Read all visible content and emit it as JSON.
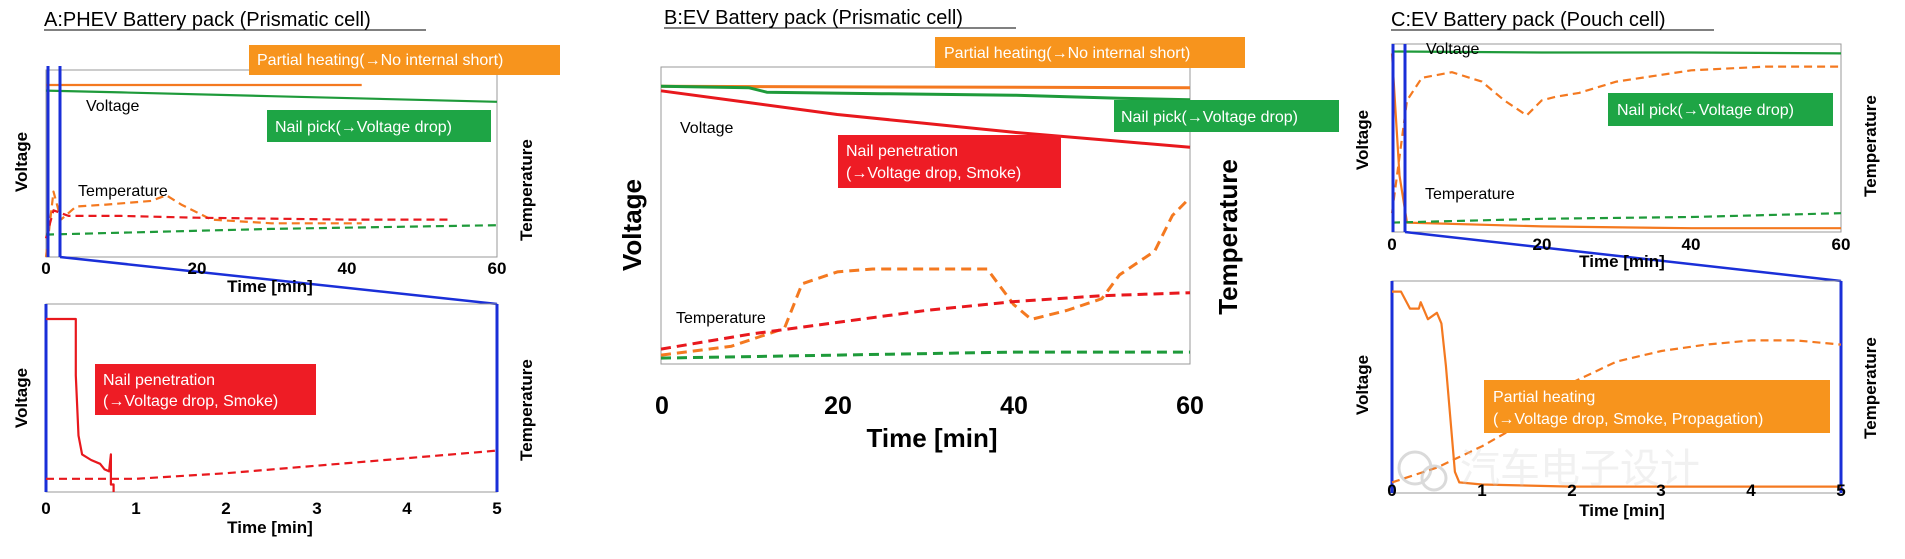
{
  "colors": {
    "orange": "#f47920",
    "red": "#e8181d",
    "green": "#1e9a3a",
    "box_orange": "#f7941d",
    "box_green": "#1ea545",
    "box_red": "#ee1c25",
    "zoom_blue": "#1a2fd8"
  },
  "watermark": "汽车电子设计",
  "chart_data": [
    {
      "id": "A-top",
      "type": "line",
      "title": "A:PHEV Battery pack (Prismatic cell)",
      "xlabel": "Time [min]",
      "ylabel": "Voltage",
      "y2label": "Temperature",
      "xlim": [
        0,
        60
      ],
      "xticks": [
        "0",
        "20",
        "40",
        "60"
      ],
      "annotations": {
        "voltage_label": "Voltage",
        "temperature_label": "Temperature",
        "partial_heating": "Partial heating(→No internal short)",
        "nail_pick": "Nail pick(→Voltage drop)"
      },
      "series": [
        {
          "name": "Partial heating voltage",
          "color": "orange",
          "style": "solid",
          "axis": "left",
          "x": [
            0,
            42
          ],
          "values": [
            0.92,
            0.92
          ]
        },
        {
          "name": "Nail pick voltage",
          "color": "green",
          "style": "solid",
          "axis": "left",
          "x": [
            0,
            10,
            30,
            60
          ],
          "values": [
            0.89,
            0.88,
            0.86,
            0.83
          ]
        },
        {
          "name": "Partial heating temperature",
          "color": "orange",
          "style": "dashed",
          "axis": "right",
          "x": [
            0,
            1,
            2,
            4,
            8,
            14,
            16,
            18,
            22,
            30,
            42
          ],
          "values": [
            0.0,
            0.35,
            0.2,
            0.27,
            0.28,
            0.3,
            0.33,
            0.28,
            0.2,
            0.18,
            0.18
          ]
        },
        {
          "name": "Nail penetration temperature",
          "color": "red",
          "style": "dashed",
          "axis": "right",
          "x": [
            0,
            1,
            3,
            10,
            20,
            40,
            54
          ],
          "values": [
            0.1,
            0.25,
            0.22,
            0.22,
            0.21,
            0.2,
            0.2
          ]
        },
        {
          "name": "Nail pick temperature",
          "color": "green",
          "style": "dashed",
          "axis": "right",
          "x": [
            0,
            10,
            30,
            60
          ],
          "values": [
            0.12,
            0.13,
            0.15,
            0.17
          ]
        }
      ]
    },
    {
      "id": "A-bottom",
      "type": "line",
      "xlabel": "Time [min]",
      "ylabel": "Voltage",
      "y2label": "Temperature",
      "xlim": [
        0,
        5
      ],
      "xticks": [
        "0",
        "1",
        "2",
        "3",
        "4",
        "5"
      ],
      "annotations": {
        "nail_penetration": "Nail penetration",
        "nail_penetration_detail": "(→Voltage drop, Smoke)"
      },
      "series": [
        {
          "name": "Nail penetration voltage",
          "color": "red",
          "style": "solid",
          "axis": "left",
          "x": [
            0,
            0.33,
            0.33,
            0.36,
            0.4,
            0.5,
            0.6,
            0.65,
            0.7,
            0.72,
            0.72,
            0.75,
            0.75
          ],
          "values": [
            0.92,
            0.92,
            0.62,
            0.3,
            0.2,
            0.17,
            0.15,
            0.12,
            0.11,
            0.2,
            0.04,
            0.04,
            0.0
          ]
        },
        {
          "name": "Nail penetration temperature",
          "color": "red",
          "style": "dashed",
          "axis": "right",
          "x": [
            0,
            0.7,
            1.0,
            2,
            3,
            4,
            5
          ],
          "values": [
            0.07,
            0.07,
            0.07,
            0.1,
            0.14,
            0.18,
            0.22
          ]
        }
      ]
    },
    {
      "id": "B",
      "type": "line",
      "title": "B:EV Battery pack (Prismatic cell)",
      "xlabel": "Time [min]",
      "ylabel": "Voltage",
      "y2label": "Temperature",
      "xlim": [
        0,
        60
      ],
      "xticks": [
        "0",
        "20",
        "40",
        "60"
      ],
      "annotations": {
        "voltage_label": "Voltage",
        "temperature_label": "Temperature",
        "partial_heating": "Partial heating(→No internal short)",
        "nail_pick": "Nail pick(→Voltage drop)",
        "nail_penetration": "Nail penetration",
        "nail_penetration_detail": "(→Voltage drop, Smoke)"
      },
      "series": [
        {
          "name": "Partial heating voltage",
          "color": "orange",
          "style": "solid",
          "axis": "left",
          "x": [
            0,
            60
          ],
          "values": [
            0.935,
            0.93
          ]
        },
        {
          "name": "Nail pick voltage",
          "color": "green",
          "style": "solid",
          "axis": "left",
          "x": [
            0,
            10,
            12,
            25,
            40,
            52,
            60
          ],
          "values": [
            0.935,
            0.93,
            0.915,
            0.91,
            0.905,
            0.895,
            0.89
          ]
        },
        {
          "name": "Nail penetration voltage",
          "color": "red",
          "style": "solid",
          "axis": "left",
          "x": [
            0,
            10,
            20,
            30,
            40,
            50,
            60
          ],
          "values": [
            0.92,
            0.88,
            0.84,
            0.81,
            0.78,
            0.755,
            0.73
          ]
        },
        {
          "name": "Partial heating temperature",
          "color": "orange",
          "style": "dashed",
          "axis": "right",
          "x": [
            0,
            8,
            14,
            16,
            20,
            24,
            30,
            37,
            40,
            42,
            46,
            50,
            52,
            56,
            58,
            60
          ],
          "values": [
            0.03,
            0.06,
            0.12,
            0.27,
            0.31,
            0.32,
            0.32,
            0.32,
            0.2,
            0.15,
            0.18,
            0.22,
            0.3,
            0.38,
            0.5,
            0.56
          ]
        },
        {
          "name": "Nail penetration temperature",
          "color": "red",
          "style": "dashed",
          "axis": "right",
          "x": [
            0,
            10,
            20,
            30,
            40,
            50,
            60
          ],
          "values": [
            0.05,
            0.1,
            0.14,
            0.18,
            0.21,
            0.23,
            0.24
          ]
        },
        {
          "name": "Nail pick temperature",
          "color": "green",
          "style": "dashed",
          "axis": "right",
          "x": [
            0,
            20,
            40,
            60
          ],
          "values": [
            0.02,
            0.03,
            0.04,
            0.04
          ]
        }
      ]
    },
    {
      "id": "C-top",
      "type": "line",
      "title": "C:EV Battery pack (Pouch cell)",
      "xlabel": "Time [min]",
      "ylabel": "Voltage",
      "y2label": "Temperature",
      "xlim": [
        0,
        60
      ],
      "xticks": [
        "0",
        "20",
        "40",
        "60"
      ],
      "annotations": {
        "voltage_label": "Voltage",
        "temperature_label": "Temperature",
        "nail_pick": "Nail pick(→Voltage drop)"
      },
      "series": [
        {
          "name": "Nail pick voltage",
          "color": "green",
          "style": "solid",
          "axis": "left",
          "x": [
            0,
            20,
            40,
            60
          ],
          "values": [
            0.96,
            0.955,
            0.955,
            0.95
          ]
        },
        {
          "name": "Partial heating temperature",
          "color": "orange",
          "style": "dashed",
          "axis": "right",
          "x": [
            0,
            1,
            2,
            4,
            8,
            12,
            15,
            18,
            20,
            22,
            25,
            30,
            40,
            50,
            60
          ],
          "values": [
            0.1,
            0.4,
            0.7,
            0.82,
            0.85,
            0.8,
            0.7,
            0.62,
            0.7,
            0.72,
            0.74,
            0.8,
            0.86,
            0.88,
            0.88
          ]
        },
        {
          "name": "Partial heating voltage",
          "color": "orange",
          "style": "solid",
          "axis": "left",
          "x": [
            0,
            1,
            2,
            20,
            40,
            60
          ],
          "values": [
            0.95,
            0.3,
            0.05,
            0.03,
            0.02,
            0.02
          ]
        },
        {
          "name": "Nail pick temperature",
          "color": "green",
          "style": "dashed",
          "axis": "right",
          "x": [
            0,
            20,
            40,
            60
          ],
          "values": [
            0.05,
            0.07,
            0.08,
            0.1
          ]
        }
      ]
    },
    {
      "id": "C-bottom",
      "type": "line",
      "xlabel": "Time [min]",
      "ylabel": "Voltage",
      "y2label": "Temperature",
      "xlim": [
        0,
        5
      ],
      "xticks": [
        "0",
        "1",
        "2",
        "3",
        "4",
        "5"
      ],
      "annotations": {
        "partial_heating": "Partial heating",
        "partial_heating_detail": "(→Voltage drop, Smoke, Propagation)"
      },
      "series": [
        {
          "name": "Partial heating voltage",
          "color": "orange",
          "style": "solid",
          "axis": "left",
          "x": [
            0,
            0.1,
            0.2,
            0.3,
            0.32,
            0.4,
            0.5,
            0.55,
            0.6,
            0.66,
            0.7,
            0.75,
            1.0,
            2,
            3,
            4,
            5
          ],
          "values": [
            0.95,
            0.95,
            0.87,
            0.87,
            0.9,
            0.82,
            0.85,
            0.8,
            0.6,
            0.3,
            0.1,
            0.05,
            0.04,
            0.03,
            0.03,
            0.03,
            0.03
          ]
        },
        {
          "name": "Partial heating temperature",
          "color": "orange",
          "style": "dashed",
          "axis": "right",
          "x": [
            0,
            0.5,
            1.0,
            1.5,
            2,
            2.5,
            3,
            3.5,
            4,
            4.5,
            5
          ],
          "values": [
            0.05,
            0.12,
            0.22,
            0.34,
            0.52,
            0.62,
            0.67,
            0.7,
            0.72,
            0.72,
            0.7
          ]
        }
      ]
    }
  ]
}
